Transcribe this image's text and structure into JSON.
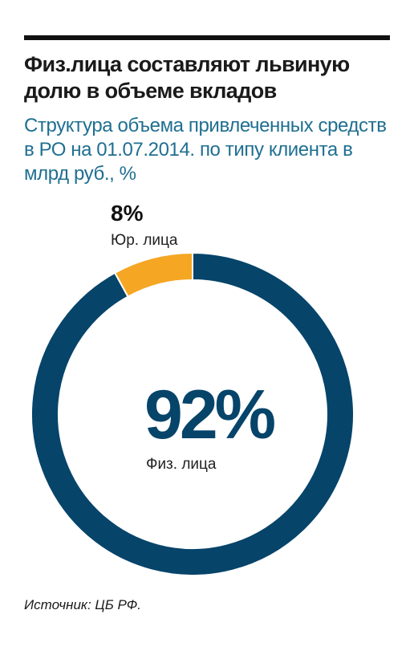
{
  "header": {
    "title": "Физ.лица составляют львиную долю в объеме вкладов",
    "subtitle": "Структура объема привлеченных средств в РО на 01.07.2014. по типу клиента в млрд руб., %"
  },
  "chart_data": {
    "type": "pie",
    "style": "donut",
    "slices": [
      {
        "label": "Физ. лица",
        "value": 92,
        "value_label": "92%",
        "color": "#06446a"
      },
      {
        "label": "Юр. лица",
        "value": 8,
        "value_label": "8%",
        "color": "#f5a623"
      }
    ]
  },
  "footer": {
    "source": "Источник: ЦБ РФ."
  }
}
